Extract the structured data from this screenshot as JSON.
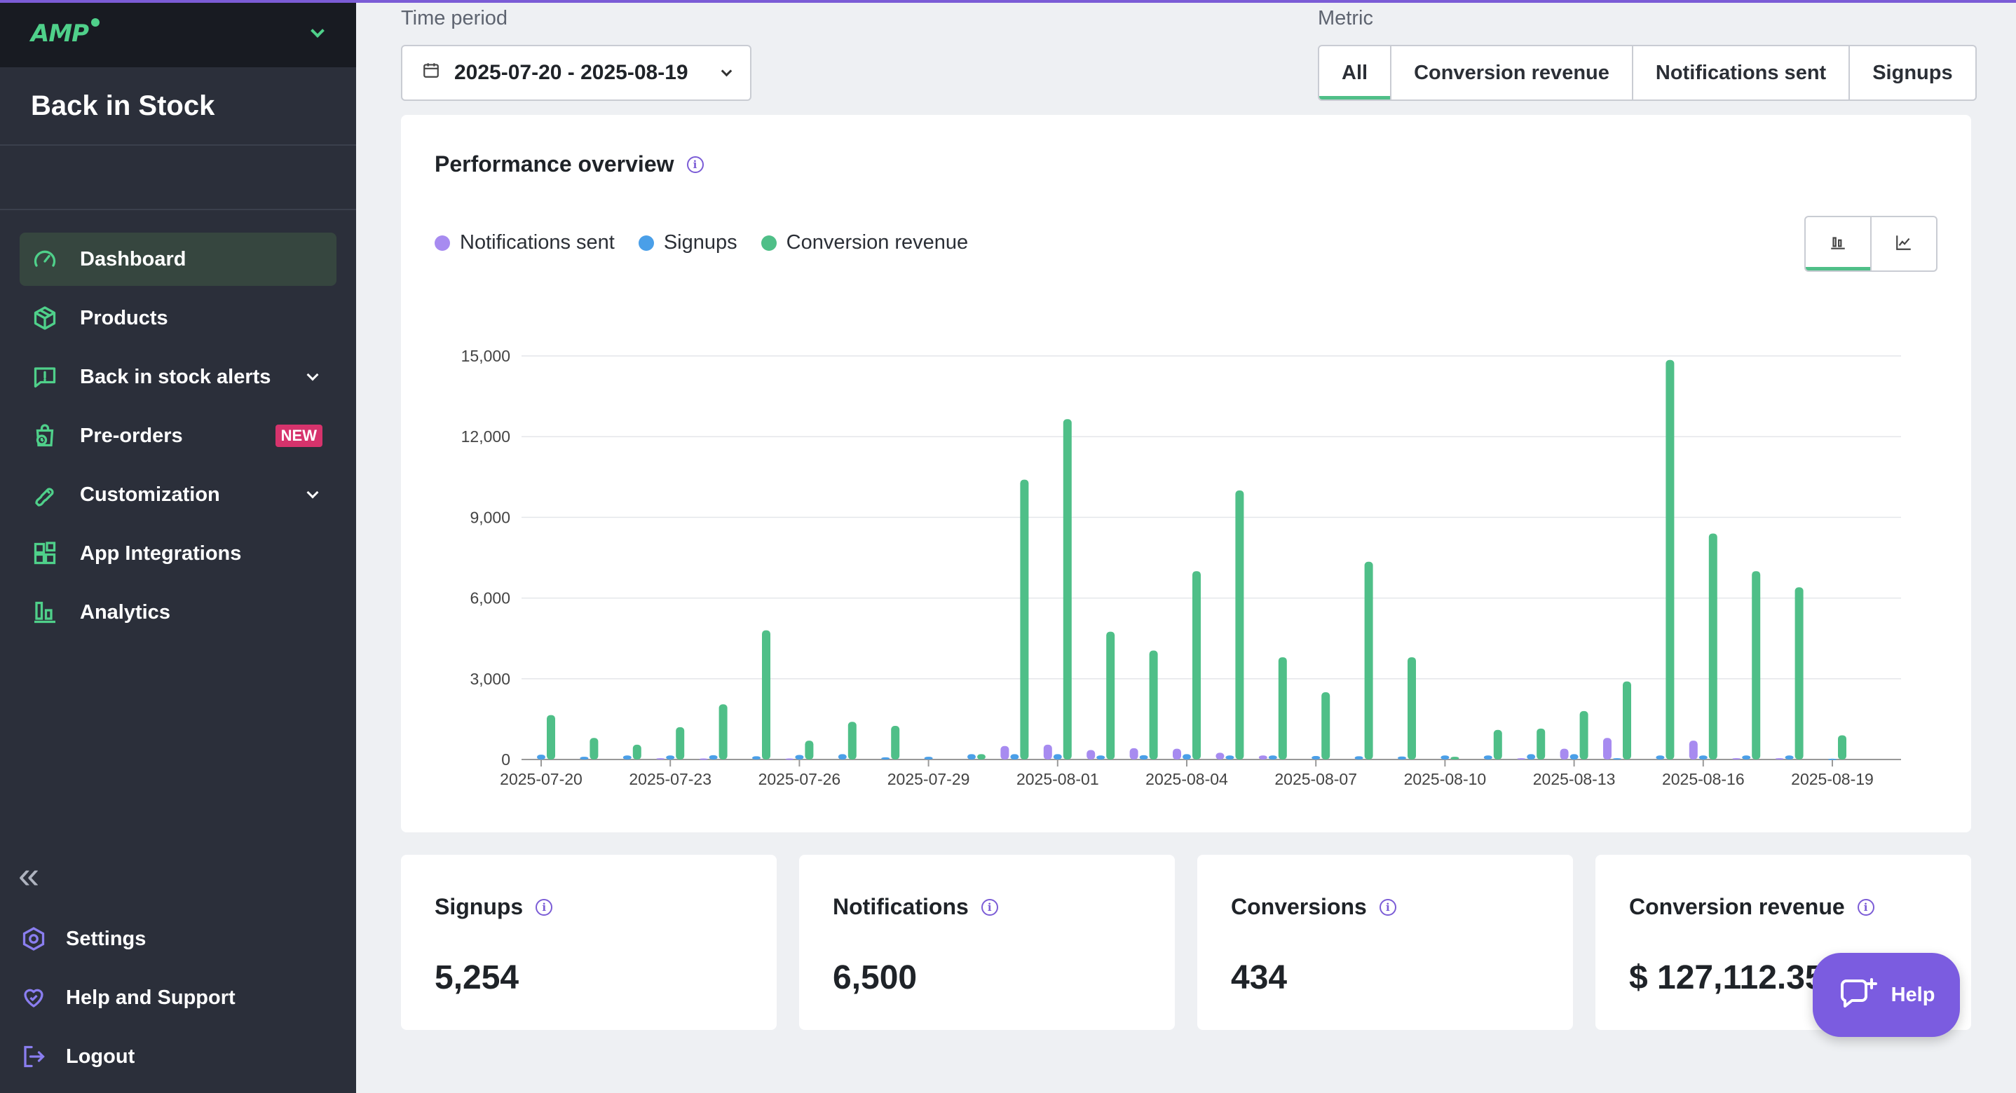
{
  "sidebar": {
    "logo": "AMP",
    "app_name": "Back in Stock",
    "items": [
      {
        "label": "Dashboard",
        "icon": "gauge-icon",
        "active": true
      },
      {
        "label": "Products",
        "icon": "box-icon"
      },
      {
        "label": "Back in stock alerts",
        "icon": "message-alert-icon",
        "expandable": true
      },
      {
        "label": "Pre-orders",
        "icon": "clock-bag-icon",
        "badge": "NEW"
      },
      {
        "label": "Customization",
        "icon": "brush-icon",
        "expandable": true
      },
      {
        "label": "App Integrations",
        "icon": "blocks-icon"
      },
      {
        "label": "Analytics",
        "icon": "bar-chart-icon"
      }
    ],
    "bottom_items": [
      {
        "label": "Settings",
        "icon": "hexagon-settings-icon"
      },
      {
        "label": "Help and Support",
        "icon": "heart-hand-icon"
      },
      {
        "label": "Logout",
        "icon": "logout-icon"
      }
    ]
  },
  "filters": {
    "time_period_label": "Time period",
    "date_range": "2025-07-20 - 2025-08-19",
    "metric_label": "Metric",
    "metric_tabs": [
      "All",
      "Conversion revenue",
      "Notifications sent",
      "Signups"
    ],
    "active_metric": "All"
  },
  "overview": {
    "title": "Performance overview",
    "legend": [
      {
        "name": "Notifications sent",
        "color": "#a78bf0"
      },
      {
        "name": "Signups",
        "color": "#4a9fe8"
      },
      {
        "name": "Conversion revenue",
        "color": "#4fbf88"
      }
    ]
  },
  "chart_data": {
    "type": "bar",
    "ylim": [
      0,
      15000
    ],
    "yticks": [
      "0",
      "3,000",
      "6,000",
      "9,000",
      "12,000",
      "15,000"
    ],
    "ytick_values": [
      0,
      3000,
      6000,
      9000,
      12000,
      15000
    ],
    "categories": [
      "2025-07-20",
      "2025-07-21",
      "2025-07-22",
      "2025-07-23",
      "2025-07-24",
      "2025-07-25",
      "2025-07-26",
      "2025-07-27",
      "2025-07-28",
      "2025-07-29",
      "2025-07-30",
      "2025-07-31",
      "2025-08-01",
      "2025-08-02",
      "2025-08-03",
      "2025-08-04",
      "2025-08-05",
      "2025-08-06",
      "2025-08-07",
      "2025-08-08",
      "2025-08-09",
      "2025-08-10",
      "2025-08-11",
      "2025-08-12",
      "2025-08-13",
      "2025-08-14",
      "2025-08-15",
      "2025-08-16",
      "2025-08-17",
      "2025-08-18",
      "2025-08-19"
    ],
    "xtick_labels": [
      "2025-07-20",
      "2025-07-23",
      "2025-07-26",
      "2025-07-29",
      "2025-08-01",
      "2025-08-04",
      "2025-08-07",
      "2025-08-10",
      "2025-08-13",
      "2025-08-16",
      "2025-08-19"
    ],
    "grid": true,
    "legend_position": "top-left",
    "series": [
      {
        "name": "Notifications sent",
        "color": "#a78bf0",
        "values": [
          0,
          0,
          0,
          50,
          40,
          0,
          40,
          0,
          0,
          0,
          0,
          500,
          550,
          350,
          420,
          400,
          250,
          150,
          0,
          0,
          0,
          0,
          0,
          50,
          400,
          800,
          0,
          700,
          50,
          50,
          0
        ]
      },
      {
        "name": "Signups",
        "color": "#4a9fe8",
        "values": [
          180,
          100,
          150,
          150,
          160,
          120,
          170,
          200,
          80,
          100,
          200,
          200,
          200,
          150,
          160,
          200,
          150,
          150,
          130,
          120,
          110,
          150,
          150,
          200,
          200,
          50,
          150,
          150,
          150,
          150,
          30
        ]
      },
      {
        "name": "Conversion revenue",
        "color": "#4fbf88",
        "values": [
          1650,
          800,
          550,
          1200,
          2050,
          4800,
          700,
          1400,
          1250,
          0,
          200,
          10400,
          12650,
          4750,
          4050,
          7000,
          10000,
          3800,
          2500,
          7350,
          3800,
          100,
          1100,
          1150,
          1800,
          2900,
          14850,
          8400,
          7000,
          6400,
          900
        ]
      }
    ]
  },
  "stats": [
    {
      "title": "Signups",
      "value": "5,254"
    },
    {
      "title": "Notifications",
      "value": "6,500"
    },
    {
      "title": "Conversions",
      "value": "434"
    },
    {
      "title": "Conversion revenue",
      "value": "$ 127,112.35"
    }
  ],
  "help_button": "Help"
}
